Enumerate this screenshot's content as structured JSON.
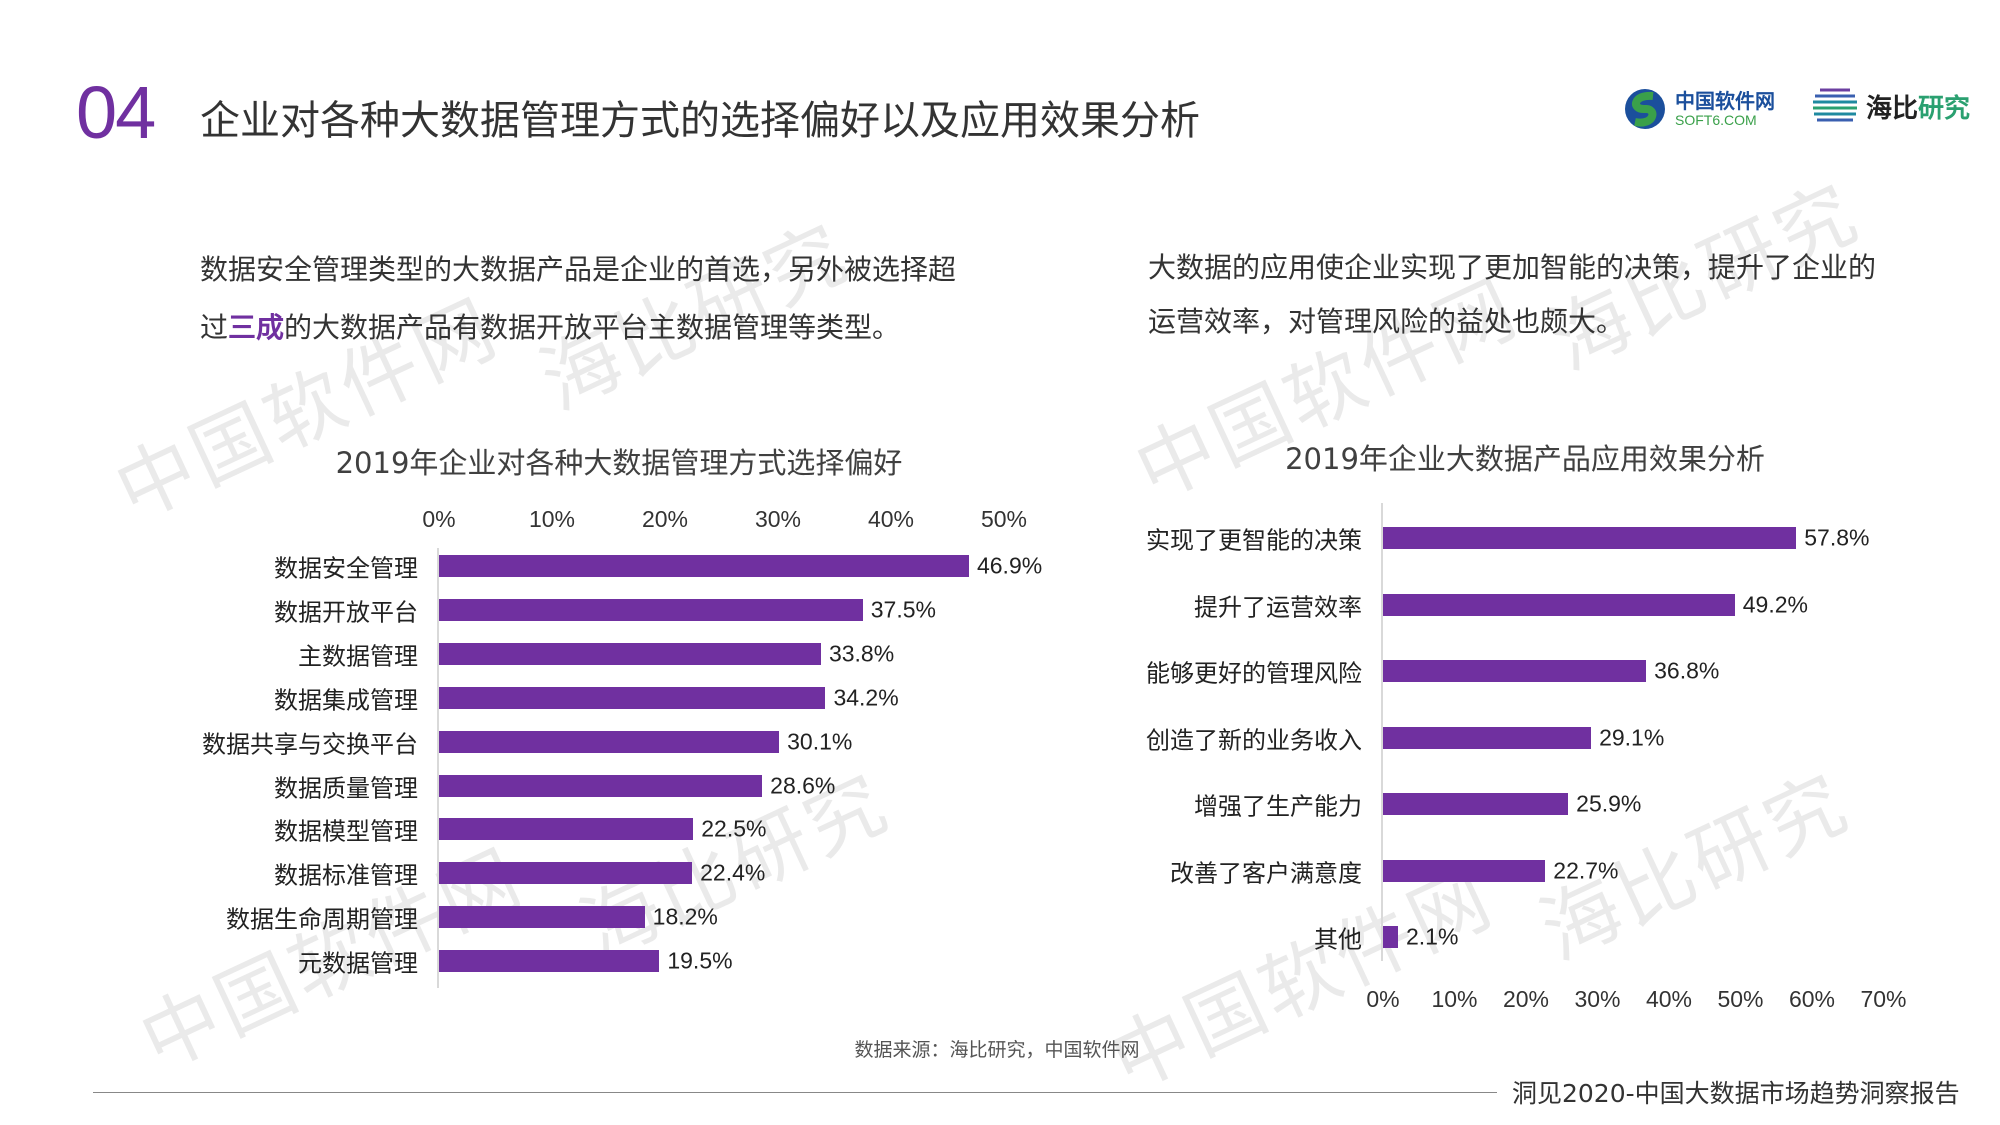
{
  "header": {
    "section_number": "04",
    "title": "企业对各种大数据管理方式的选择偏好以及应用效果分析"
  },
  "logos": {
    "soft6_cn": "中国软件网",
    "soft6_en": "SOFT6.COM",
    "haibi": "海比",
    "haibi2": "研究"
  },
  "watermarks": [
    "中国软件网",
    "海比研究"
  ],
  "left_text": {
    "line1": "数据安全管理类型的大数据产品是企业的首选，另外被选择超",
    "line2_pre": "过",
    "line2_hl": "三成",
    "line2_post": "的大数据产品有数据开放平台主数据管理等类型。"
  },
  "right_text": {
    "line1": "大数据的应用使企业实现了更加智能的决策，提升了企业的",
    "line2": "运营效率，对管理风险的益处也颇大。"
  },
  "chart_data": [
    {
      "type": "bar",
      "orientation": "horizontal",
      "title": "2019年企业对各种大数据管理方式选择偏好",
      "categories": [
        "数据安全管理",
        "数据开放平台",
        "主数据管理",
        "数据集成管理",
        "数据共享与交换平台",
        "数据质量管理",
        "数据模型管理",
        "数据标准管理",
        "数据生命周期管理",
        "元数据管理"
      ],
      "values": [
        46.9,
        37.5,
        33.8,
        34.2,
        30.1,
        28.6,
        22.5,
        22.4,
        18.2,
        19.5
      ],
      "labels": [
        "46.9%",
        "37.5%",
        "33.8%",
        "34.2%",
        "30.1%",
        "28.6%",
        "22.5%",
        "22.4%",
        "18.2%",
        "19.5%"
      ],
      "xlim": [
        0,
        50
      ],
      "xticks": [
        "0%",
        "10%",
        "20%",
        "30%",
        "40%",
        "50%"
      ],
      "xaxis_position": "top",
      "color": "#7030a0"
    },
    {
      "type": "bar",
      "orientation": "horizontal",
      "title": "2019年企业大数据产品应用效果分析",
      "categories": [
        "实现了更智能的决策",
        "提升了运营效率",
        "能够更好的管理风险",
        "创造了新的业务收入",
        "增强了生产能力",
        "改善了客户满意度",
        "其他"
      ],
      "values": [
        57.8,
        49.2,
        36.8,
        29.1,
        25.9,
        22.7,
        2.1
      ],
      "labels": [
        "57.8%",
        "49.2%",
        "36.8%",
        "29.1%",
        "25.9%",
        "22.7%",
        "2.1%"
      ],
      "xlim": [
        0,
        70
      ],
      "xticks": [
        "0%",
        "10%",
        "20%",
        "30%",
        "40%",
        "50%",
        "60%",
        "70%"
      ],
      "xaxis_position": "bottom",
      "color": "#7030a0"
    }
  ],
  "source": "数据来源：海比研究，中国软件网",
  "footer": "洞见2020-中国大数据市场趋势洞察报告"
}
